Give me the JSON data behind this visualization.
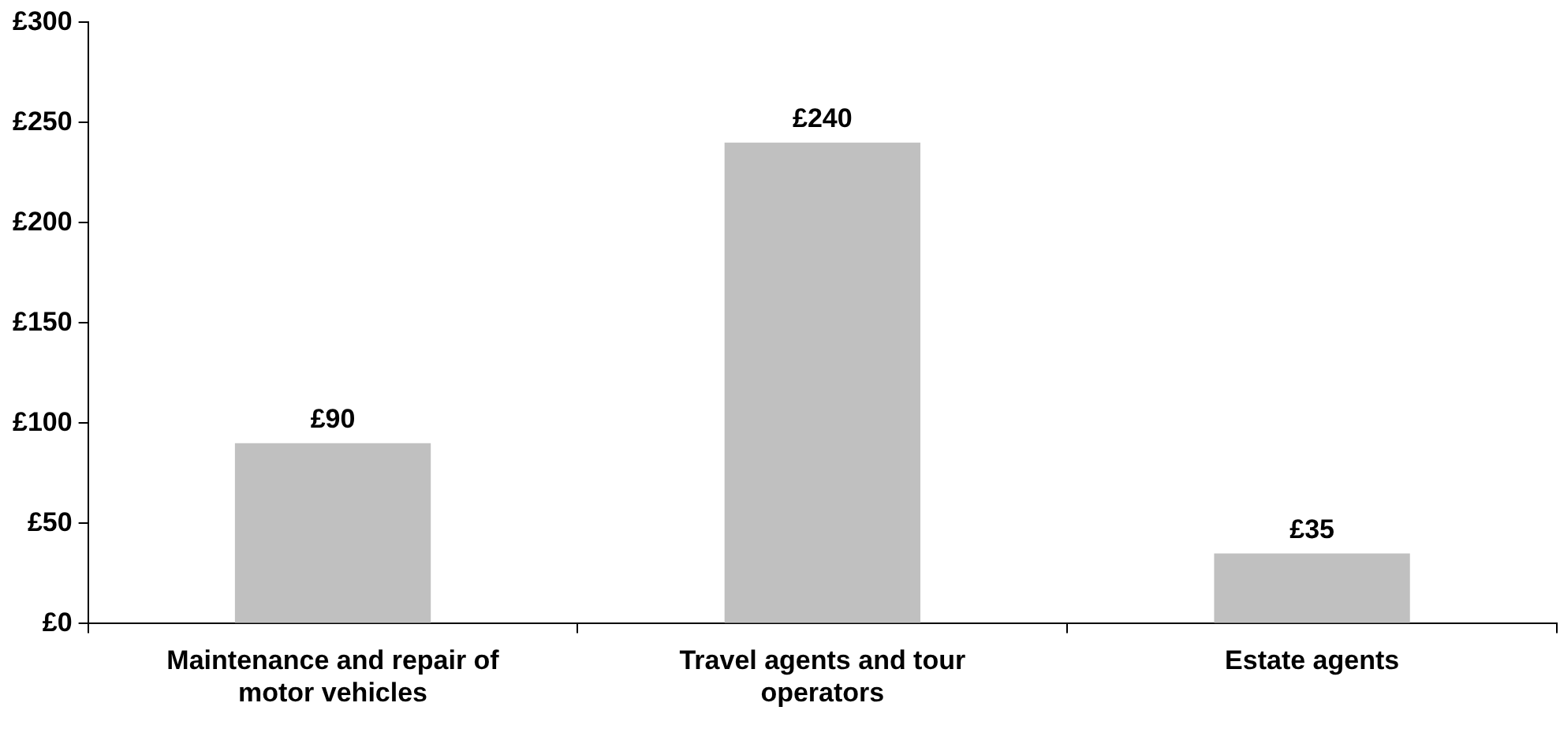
{
  "chart_data": {
    "type": "bar",
    "categories": [
      "Maintenance and repair of motor vehicles",
      "Travel agents and tour operators",
      "Estate agents"
    ],
    "values": [
      90,
      240,
      35
    ],
    "color": "#c0c0c0",
    "value_labels": [
      "£90",
      "£240",
      "£35"
    ],
    "ylim": [
      0,
      300
    ],
    "yticks": [
      {
        "value": 0,
        "label": "£0"
      },
      {
        "value": 50,
        "label": "£50"
      },
      {
        "value": 100,
        "label": "£100"
      },
      {
        "value": 150,
        "label": "£150"
      },
      {
        "value": 200,
        "label": "£200"
      },
      {
        "value": 250,
        "label": "£250"
      },
      {
        "value": 300,
        "label": "£300"
      }
    ],
    "grid": false,
    "legend": false
  }
}
